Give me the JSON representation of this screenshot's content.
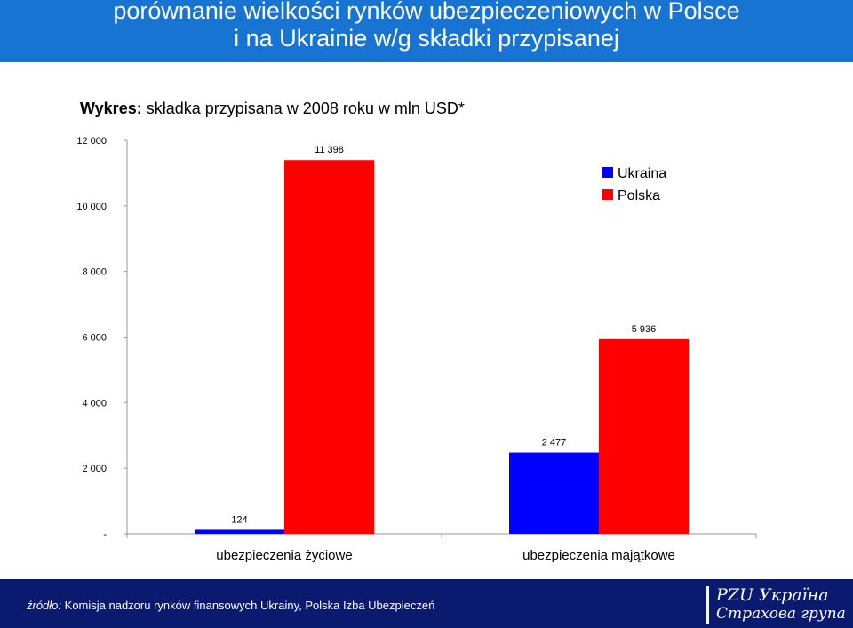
{
  "header": {
    "title_line1": "porównanie wielkości rynków ubezpieczeniowych w Polsce",
    "title_line2": "i na Ukrainie w/g składki przypisanej"
  },
  "subtitle": {
    "prefix": "Wykres:",
    "text": " składka przypisana w 2008 roku w mln USD*"
  },
  "chart_data": {
    "type": "bar",
    "categories": [
      "ubezpieczenia życiowe",
      "ubezpieczenia majątkowe"
    ],
    "series": [
      {
        "name": "Ukraina",
        "color": "#0000ff",
        "values": [
          124,
          2477
        ],
        "labels": [
          "124",
          "2 477"
        ]
      },
      {
        "name": "Polska",
        "color": "#ff0000",
        "values": [
          11398,
          5936
        ],
        "labels": [
          "11 398",
          "5 936"
        ]
      }
    ],
    "yticks": [
      {
        "value": 0,
        "label": "-"
      },
      {
        "value": 2000,
        "label": "2 000"
      },
      {
        "value": 4000,
        "label": "4 000"
      },
      {
        "value": 6000,
        "label": "6 000"
      },
      {
        "value": 8000,
        "label": "8 000"
      },
      {
        "value": 10000,
        "label": "10 000"
      },
      {
        "value": 12000,
        "label": "12 000"
      }
    ],
    "ylim": [
      0,
      12000
    ],
    "grid": false,
    "legend_position": "top-right"
  },
  "footer": {
    "source_prefix": "źródło:",
    "source_text": "  Komisja nadzoru rynków finansowych Ukrainy, Polska Izba Ubezpieczeń",
    "logo_name": "PZU Україна",
    "logo_sub": "Страхова група"
  }
}
